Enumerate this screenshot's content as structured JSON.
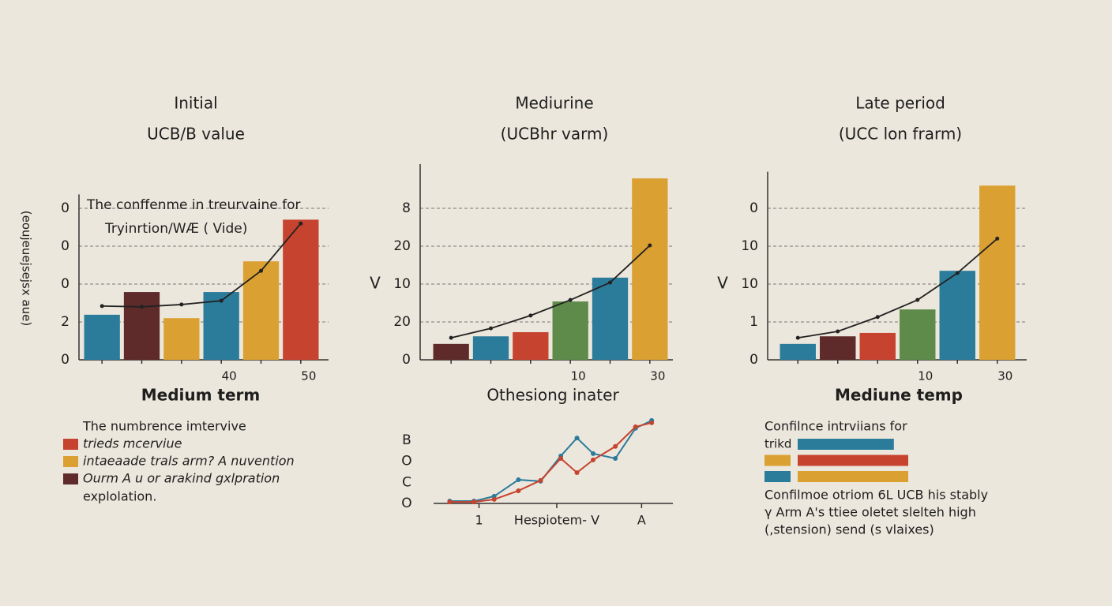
{
  "chart_data": [
    {
      "type": "bar",
      "title": "Initial",
      "subtitle": "UCB/B value",
      "ylabel": "(eoujeuejsejsx aue)",
      "annotations": [
        "The conffenme in treurvaine for",
        "Tryinrtion/WÆ ( Vide)"
      ],
      "categories": [
        null,
        null,
        null,
        "40",
        null,
        "50"
      ],
      "values": [
        1.19,
        1.79,
        1.1,
        1.79,
        2.6,
        3.7
      ],
      "colors": [
        "#2b7b9b",
        "#5e2a2a",
        "#dba032",
        "#2b7b9b",
        "#dba032",
        "#c6432f"
      ],
      "curve": {
        "values": [
          1.42,
          1.4,
          1.46,
          1.56,
          2.35,
          3.6
        ],
        "color": "#222222"
      },
      "ylim": [
        0,
        4.2
      ],
      "yticks": [
        0,
        {
          "value": 1,
          "label": "2"
        },
        {
          "value": 2,
          "label": "0"
        },
        {
          "value": 3,
          "label": "0"
        },
        {
          "value": 4,
          "label": "0"
        }
      ],
      "grid": true
    },
    {
      "type": "bar",
      "title": "Mediurine",
      "subtitle": "(UCBhr varm)",
      "ylabel": "V",
      "categories": [
        null,
        null,
        null,
        "10",
        null,
        "30"
      ],
      "values": [
        0.42,
        0.62,
        0.73,
        1.54,
        2.17,
        4.79
      ],
      "colors": [
        "#5e2a2a",
        "#2b7b9b",
        "#c6432f",
        "#5e8a4a",
        "#2b7b9b",
        "#dba032"
      ],
      "curve": {
        "values": [
          0.58,
          0.83,
          1.17,
          1.58,
          2.04,
          3.02
        ],
        "color": "#222222"
      },
      "ylim": [
        0,
        5
      ],
      "yticks": [
        0,
        {
          "value": 1,
          "label": "20"
        },
        {
          "value": 2,
          "label": "10"
        },
        {
          "value": 3,
          "label": "20"
        },
        {
          "value": 4,
          "label": "8"
        }
      ],
      "grid": true
    },
    {
      "type": "bar",
      "title": "Late period",
      "subtitle": "(UCC lon frarm)",
      "ylabel": "V",
      "categories": [
        null,
        null,
        null,
        "10",
        null,
        "30"
      ],
      "values": [
        0.42,
        0.62,
        0.71,
        1.33,
        2.35,
        4.6
      ],
      "colors": [
        "#2b7b9b",
        "#5e2a2a",
        "#c6432f",
        "#5e8a4a",
        "#2b7b9b",
        "#dba032"
      ],
      "curve": {
        "values": [
          0.58,
          0.75,
          1.13,
          1.58,
          2.29,
          3.2
        ],
        "color": "#222222"
      },
      "ylim": [
        0,
        4.8
      ],
      "yticks": [
        0,
        1,
        {
          "value": 2,
          "label": "10"
        },
        {
          "value": 3,
          "label": "10"
        },
        {
          "value": 4,
          "label": "0"
        }
      ],
      "grid": true
    },
    {
      "type": "line",
      "title": "Othesiong inater",
      "x": [
        0,
        1.2,
        2.2,
        3.4,
        4.5,
        5.5,
        6.3,
        7.1,
        8.2,
        9.2,
        10
      ],
      "series": [
        {
          "color": "#2b7b9b",
          "values": [
            0.11,
            0.11,
            0.34,
            1.12,
            1.05,
            2.25,
            3.1,
            2.36,
            2.13,
            3.56,
            3.93
          ]
        },
        {
          "color": "#c6432f",
          "values": [
            0.07,
            0.07,
            0.19,
            0.6,
            1.09,
            2.13,
            1.46,
            2.06,
            2.7,
            3.63,
            3.82
          ]
        }
      ],
      "xlim": [
        -0.8,
        11.05
      ],
      "xticks": [
        {
          "value": 1.45,
          "label": "1"
        },
        {
          "value": 5.3,
          "label": "Hespiotem- V"
        },
        {
          "value": 9.5,
          "label": "A"
        }
      ],
      "ylim": [
        0,
        4
      ],
      "yticks": [
        {
          "value": 0,
          "label": "O"
        },
        {
          "value": 1,
          "label": "C"
        },
        {
          "value": 2,
          "label": "O"
        },
        {
          "value": 3,
          "label": "B"
        }
      ]
    },
    {
      "type": "hbar",
      "title": "Mediune temp",
      "heading": "Confilnce intrviians  for",
      "rows": [
        {
          "label": "trikd",
          "color": "#2b7b9b",
          "value": 87
        },
        {
          "swatch": "#dba032",
          "color": "#c6432f",
          "value": 100
        },
        {
          "swatch": "#2b7b9b",
          "color": "#dba032",
          "value": 100
        }
      ],
      "xlim": [
        0,
        100
      ],
      "notes": [
        "Confilmoe otriom 6L UCB his stably",
        "γ Arm A's ttiee oletet slelteh high",
        "(,stension) send (ꜱ vlaixes)"
      ]
    }
  ],
  "legend_block": {
    "title": "Medium term",
    "heading": "The numbrence imtervive",
    "items": [
      {
        "text": "trieds mcerviue",
        "color": "#c6432f"
      },
      {
        "text": "intaeaade trals arm? A nuvention",
        "color": "#dba032"
      },
      {
        "text": "Ourm A u or arakind gxlpration",
        "color": "#5e2a2a"
      }
    ],
    "continuation": "explolation."
  }
}
